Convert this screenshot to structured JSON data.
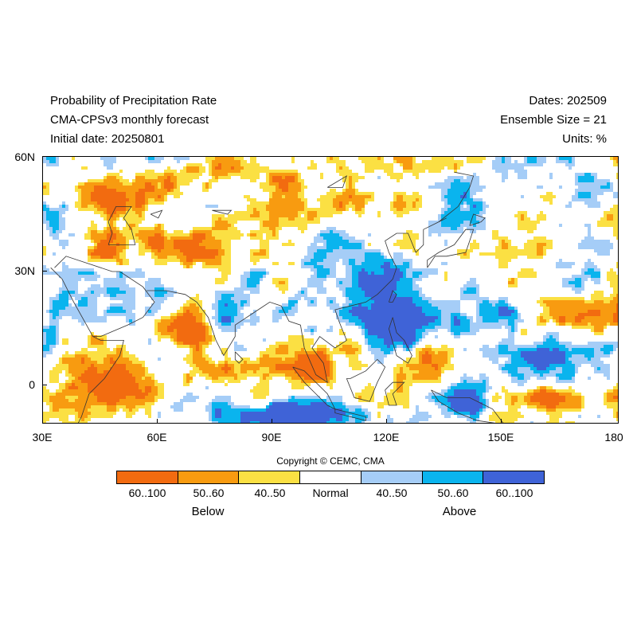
{
  "header": {
    "title_line1": "Probability of Precipitation Rate",
    "title_line2": "CMA-CPSv3 monthly forecast",
    "title_line3": "Initial date: 20250801",
    "right_line1": "Dates: 202509",
    "right_line2": "Ensemble Size = 21",
    "right_line3": "Units: %"
  },
  "map": {
    "lat_labels": [
      "60N",
      "30N",
      "0"
    ],
    "lon_labels": [
      "30E",
      "60E",
      "90E",
      "120E",
      "150E",
      "180"
    ],
    "lon_range": [
      30,
      180
    ],
    "lat_range": [
      -10,
      60
    ]
  },
  "copyright": "Copyright © CEMC, CMA",
  "legend": {
    "categories": [
      {
        "label": "60..100",
        "color": "#f26b10"
      },
      {
        "label": "50..60",
        "color": "#f89b10"
      },
      {
        "label": "40..50",
        "color": "#fbe043"
      },
      {
        "label": "Normal",
        "color": "#ffffff"
      },
      {
        "label": "40..50",
        "color": "#a5cdf7"
      },
      {
        "label": "50..60",
        "color": "#0ab4ee"
      },
      {
        "label": "60..100",
        "color": "#3f63d7"
      }
    ],
    "below_label": "Below",
    "above_label": "Above"
  }
}
